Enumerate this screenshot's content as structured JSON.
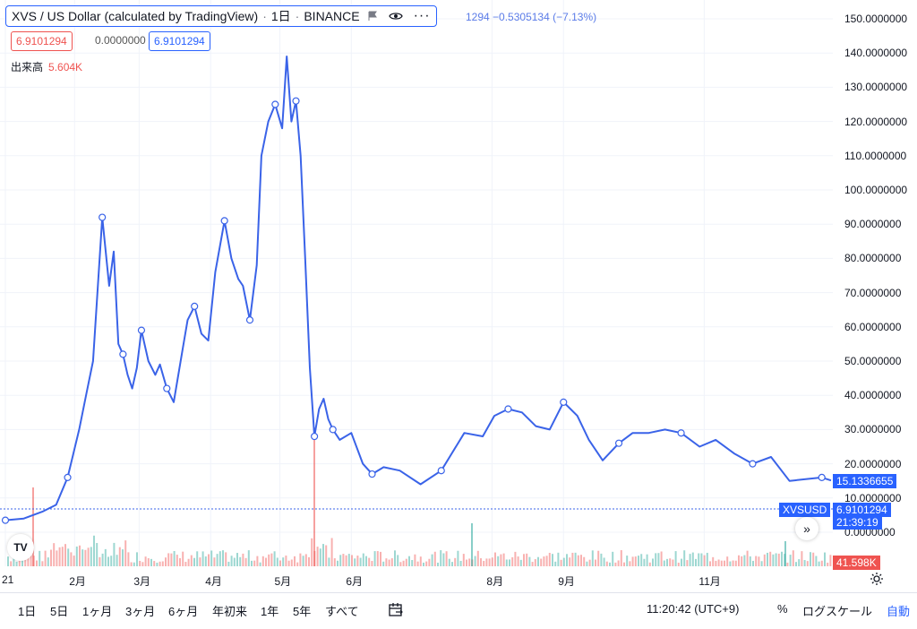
{
  "header": {
    "title": "XVS / US Dollar (calculated by TradingView)",
    "interval": "1日",
    "exchange": "BINANCE",
    "change_text": "1294  −0.5305134 (−7.13%)"
  },
  "ohlc_pills": {
    "open": "6.9101294",
    "mid": "0.0000000",
    "close": "6.9101294"
  },
  "volume_label": {
    "label": "出来高",
    "value": "5.604K"
  },
  "y_axis": {
    "labels": [
      "150.0000000",
      "140.0000000",
      "130.0000000",
      "120.0000000",
      "110.0000000",
      "100.0000000",
      "90.0000000",
      "80.0000000",
      "70.0000000",
      "60.0000000",
      "50.0000000",
      "40.0000000",
      "30.0000000",
      "20.0000000",
      "10.0000000",
      "0.0000000"
    ]
  },
  "x_axis": {
    "labels": [
      "21",
      "2月",
      "3月",
      "4月",
      "5月",
      "6月",
      "8月",
      "9月",
      "11月"
    ]
  },
  "tags": {
    "last_price": "15.1336655",
    "symbol": "XVSUSD",
    "crosshair_price": "6.9101294",
    "countdown": "21:39:19",
    "volume": "41.598K"
  },
  "toolbar": {
    "timeframes": [
      "1日",
      "5日",
      "1ヶ月",
      "3ヶ月",
      "6ヶ月",
      "年初来",
      "1年",
      "5年",
      "すべて"
    ],
    "clock": "11:20:42 (UTC+9)",
    "percent": "%",
    "log_scale": "ログスケール",
    "auto": "自動"
  },
  "colors": {
    "line": "#3a63e8",
    "volume_up": "#26a69a",
    "volume_down": "#ef5350",
    "accent": "#2962ff"
  },
  "icons": [
    "flag-icon",
    "eye-icon",
    "more-icon",
    "calendar-range-icon",
    "settings-icon",
    "scroll-right-icon",
    "tradingview-logo-icon"
  ],
  "chart_data": {
    "type": "line",
    "series": [
      {
        "name": "XVSUSD"
      }
    ],
    "x_unit": "date",
    "x": [
      "2021-01-02",
      "2021-01-10",
      "2021-01-18",
      "2021-01-24",
      "2021-01-29",
      "2021-02-03",
      "2021-02-06",
      "2021-02-09",
      "2021-02-13",
      "2021-02-16",
      "2021-02-18",
      "2021-02-20",
      "2021-02-22",
      "2021-02-24",
      "2021-02-26",
      "2021-02-28",
      "2021-03-02",
      "2021-03-05",
      "2021-03-08",
      "2021-03-10",
      "2021-03-13",
      "2021-03-16",
      "2021-03-20",
      "2021-03-22",
      "2021-03-25",
      "2021-03-28",
      "2021-03-31",
      "2021-04-03",
      "2021-04-07",
      "2021-04-10",
      "2021-04-13",
      "2021-04-15",
      "2021-04-18",
      "2021-04-21",
      "2021-04-23",
      "2021-04-26",
      "2021-04-29",
      "2021-05-02",
      "2021-05-04",
      "2021-05-06",
      "2021-05-08",
      "2021-05-10",
      "2021-05-12",
      "2021-05-14",
      "2021-05-16",
      "2021-05-18",
      "2021-05-20",
      "2021-05-22",
      "2021-05-24",
      "2021-05-27",
      "2021-06-01",
      "2021-06-06",
      "2021-06-10",
      "2021-06-15",
      "2021-06-22",
      "2021-07-01",
      "2021-07-10",
      "2021-07-20",
      "2021-07-28",
      "2021-08-02",
      "2021-08-08",
      "2021-08-14",
      "2021-08-20",
      "2021-08-26",
      "2021-09-01",
      "2021-09-07",
      "2021-09-12",
      "2021-09-18",
      "2021-09-25",
      "2021-10-01",
      "2021-10-08",
      "2021-10-15",
      "2021-10-22",
      "2021-10-30",
      "2021-11-06",
      "2021-11-14",
      "2021-11-22",
      "2021-11-30",
      "2021-12-08",
      "2021-12-15",
      "2021-12-22",
      "2021-12-26"
    ],
    "y": [
      3.5,
      4.0,
      6.0,
      8.0,
      16.0,
      30.0,
      40.0,
      50.0,
      92.0,
      72.0,
      82.0,
      55.0,
      52.0,
      46.0,
      42.0,
      48.0,
      59.0,
      50.0,
      46.0,
      49.0,
      42.0,
      38.0,
      54.0,
      62.0,
      66.0,
      58.0,
      56.0,
      76.0,
      91.0,
      80.0,
      74.0,
      72.0,
      62.0,
      78.0,
      110.0,
      120.0,
      125.0,
      118.0,
      139.0,
      120.0,
      126.0,
      110.0,
      80.0,
      48.0,
      28.0,
      36.0,
      39.0,
      33.0,
      30.0,
      27.0,
      29.0,
      20.0,
      17.0,
      19.0,
      18.0,
      14.0,
      18.0,
      29.0,
      28.0,
      34.0,
      36.0,
      35.0,
      31.0,
      30.0,
      38.0,
      34.0,
      27.0,
      21.0,
      26.0,
      29.0,
      29.0,
      30.0,
      29.0,
      25.0,
      27.0,
      23.0,
      20.0,
      22.0,
      15.0,
      15.5,
      16.0,
      15.13
    ],
    "ylim": [
      0,
      150
    ],
    "yscale": "linear",
    "grid": true,
    "volume": {
      "peak": "41.598K"
    }
  }
}
